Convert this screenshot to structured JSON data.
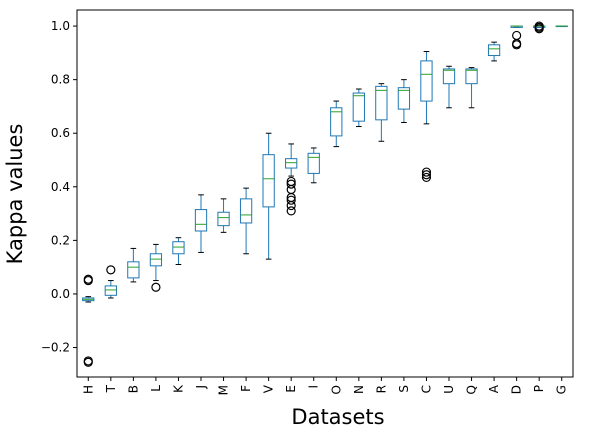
{
  "chart_data": {
    "type": "box",
    "xlabel": "Datasets",
    "ylabel": "Kappa values",
    "box_color": "#1f77b4",
    "median_color": "#2ca02c",
    "flier_color": "#000000",
    "categories": [
      "H",
      "T",
      "B",
      "L",
      "K",
      "J",
      "M",
      "F",
      "V",
      "E",
      "I",
      "O",
      "N",
      "R",
      "S",
      "C",
      "U",
      "Q",
      "A",
      "D",
      "P",
      "G"
    ],
    "boxes": [
      {
        "whislo": -0.03,
        "q1": -0.025,
        "med": -0.02,
        "q3": -0.015,
        "whishi": -0.01,
        "fliers": [
          0.05,
          0.055,
          -0.25,
          -0.255
        ]
      },
      {
        "whislo": -0.015,
        "q1": -0.005,
        "med": 0.015,
        "q3": 0.03,
        "whishi": 0.05,
        "fliers": [
          0.09
        ]
      },
      {
        "whislo": 0.045,
        "q1": 0.06,
        "med": 0.1,
        "q3": 0.12,
        "whishi": 0.17,
        "fliers": []
      },
      {
        "whislo": 0.05,
        "q1": 0.105,
        "med": 0.13,
        "q3": 0.15,
        "whishi": 0.185,
        "fliers": [
          0.025
        ]
      },
      {
        "whislo": 0.11,
        "q1": 0.15,
        "med": 0.175,
        "q3": 0.195,
        "whishi": 0.21,
        "fliers": []
      },
      {
        "whislo": 0.155,
        "q1": 0.235,
        "med": 0.26,
        "q3": 0.315,
        "whishi": 0.37,
        "fliers": []
      },
      {
        "whislo": 0.23,
        "q1": 0.255,
        "med": 0.285,
        "q3": 0.305,
        "whishi": 0.355,
        "fliers": []
      },
      {
        "whislo": 0.15,
        "q1": 0.265,
        "med": 0.295,
        "q3": 0.355,
        "whishi": 0.395,
        "fliers": []
      },
      {
        "whislo": 0.13,
        "q1": 0.325,
        "med": 0.43,
        "q3": 0.52,
        "whishi": 0.6,
        "fliers": []
      },
      {
        "whislo": 0.44,
        "q1": 0.47,
        "med": 0.49,
        "q3": 0.505,
        "whishi": 0.56,
        "fliers": [
          0.31,
          0.33,
          0.35,
          0.36,
          0.39,
          0.41,
          0.42
        ]
      },
      {
        "whislo": 0.415,
        "q1": 0.45,
        "med": 0.51,
        "q3": 0.525,
        "whishi": 0.545,
        "fliers": []
      },
      {
        "whislo": 0.55,
        "q1": 0.59,
        "med": 0.68,
        "q3": 0.695,
        "whishi": 0.72,
        "fliers": []
      },
      {
        "whislo": 0.625,
        "q1": 0.645,
        "med": 0.74,
        "q3": 0.75,
        "whishi": 0.765,
        "fliers": []
      },
      {
        "whislo": 0.57,
        "q1": 0.65,
        "med": 0.76,
        "q3": 0.775,
        "whishi": 0.785,
        "fliers": []
      },
      {
        "whislo": 0.64,
        "q1": 0.69,
        "med": 0.76,
        "q3": 0.77,
        "whishi": 0.8,
        "fliers": []
      },
      {
        "whislo": 0.635,
        "q1": 0.72,
        "med": 0.82,
        "q3": 0.87,
        "whishi": 0.905,
        "fliers": [
          0.435,
          0.445,
          0.455
        ]
      },
      {
        "whislo": 0.695,
        "q1": 0.785,
        "med": 0.835,
        "q3": 0.84,
        "whishi": 0.85,
        "fliers": []
      },
      {
        "whislo": 0.695,
        "q1": 0.785,
        "med": 0.835,
        "q3": 0.84,
        "whishi": 0.845,
        "fliers": []
      },
      {
        "whislo": 0.87,
        "q1": 0.89,
        "med": 0.915,
        "q3": 0.93,
        "whishi": 0.94,
        "fliers": []
      },
      {
        "whislo": 0.995,
        "q1": 0.995,
        "med": 1.0,
        "q3": 1.0,
        "whishi": 1.0,
        "fliers": [
          0.93,
          0.935,
          0.965
        ]
      },
      {
        "whislo": 0.995,
        "q1": 0.995,
        "med": 1.0,
        "q3": 1.0,
        "whishi": 1.0,
        "fliers": [
          0.99,
          0.995,
          1.0
        ]
      },
      {
        "whislo": 1.0,
        "q1": 1.0,
        "med": 1.0,
        "q3": 1.0,
        "whishi": 1.0,
        "fliers": []
      }
    ],
    "ylim": [
      -0.31,
      1.06
    ],
    "yticks": [
      {
        "value": -0.2,
        "label": "−0.2"
      },
      {
        "value": 0,
        "label": "0.0"
      },
      0.2,
      0.4,
      0.6,
      0.8,
      {
        "value": 1.0,
        "label": "1.0"
      }
    ]
  }
}
